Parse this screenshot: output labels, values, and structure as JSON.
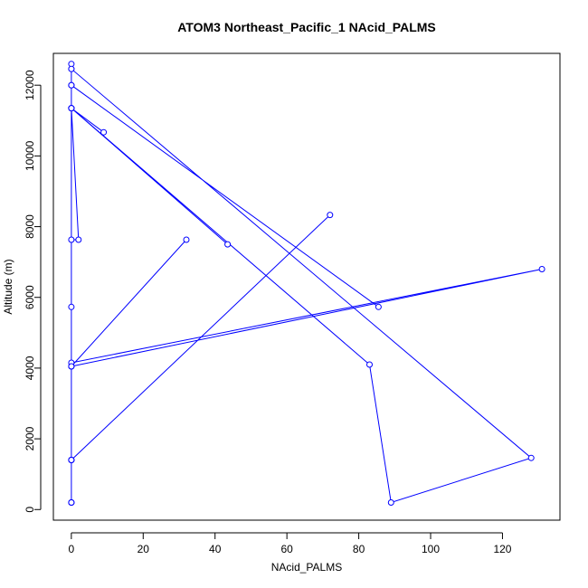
{
  "chart_data": {
    "type": "line",
    "title": "ATOM3 Northeast_Pacific_1 NAcid_PALMS",
    "xlabel": "NAcid_PALMS",
    "ylabel": "Altitude (m)",
    "xlim": [
      -5,
      136
    ],
    "ylim": [
      -300,
      12900
    ],
    "xticks": [
      0,
      20,
      40,
      60,
      80,
      100,
      120
    ],
    "yticks": [
      0,
      2000,
      4000,
      6000,
      8000,
      10000,
      12000
    ],
    "grid": false,
    "markers": "open-circle",
    "series": [
      {
        "color": "#0000ff",
        "points": [
          [
            0,
            200
          ],
          [
            0,
            200
          ],
          [
            0,
            1400
          ],
          [
            0,
            1400
          ],
          [
            72,
            8330
          ],
          [
            0,
            1400
          ],
          [
            0,
            4050
          ],
          [
            32,
            7630
          ],
          [
            0,
            4050
          ],
          [
            0,
            4150
          ],
          [
            131,
            6800
          ],
          [
            0,
            4050
          ],
          [
            0,
            5730
          ],
          [
            0,
            7630
          ],
          [
            2,
            7630
          ],
          [
            0,
            11350
          ],
          [
            0,
            12000
          ],
          [
            85.5,
            5730
          ],
          [
            0,
            12000
          ],
          [
            0,
            12460
          ],
          [
            0,
            12600
          ],
          [
            0,
            12460
          ],
          [
            128,
            1460
          ],
          [
            89,
            200
          ],
          [
            83,
            4100
          ],
          [
            0,
            11350
          ],
          [
            9,
            10670
          ],
          [
            0,
            11350
          ],
          [
            43.5,
            7500
          ],
          [
            0,
            11350
          ],
          [
            0,
            12000
          ],
          [
            0,
            1400
          ],
          [
            0,
            200
          ]
        ]
      }
    ]
  }
}
